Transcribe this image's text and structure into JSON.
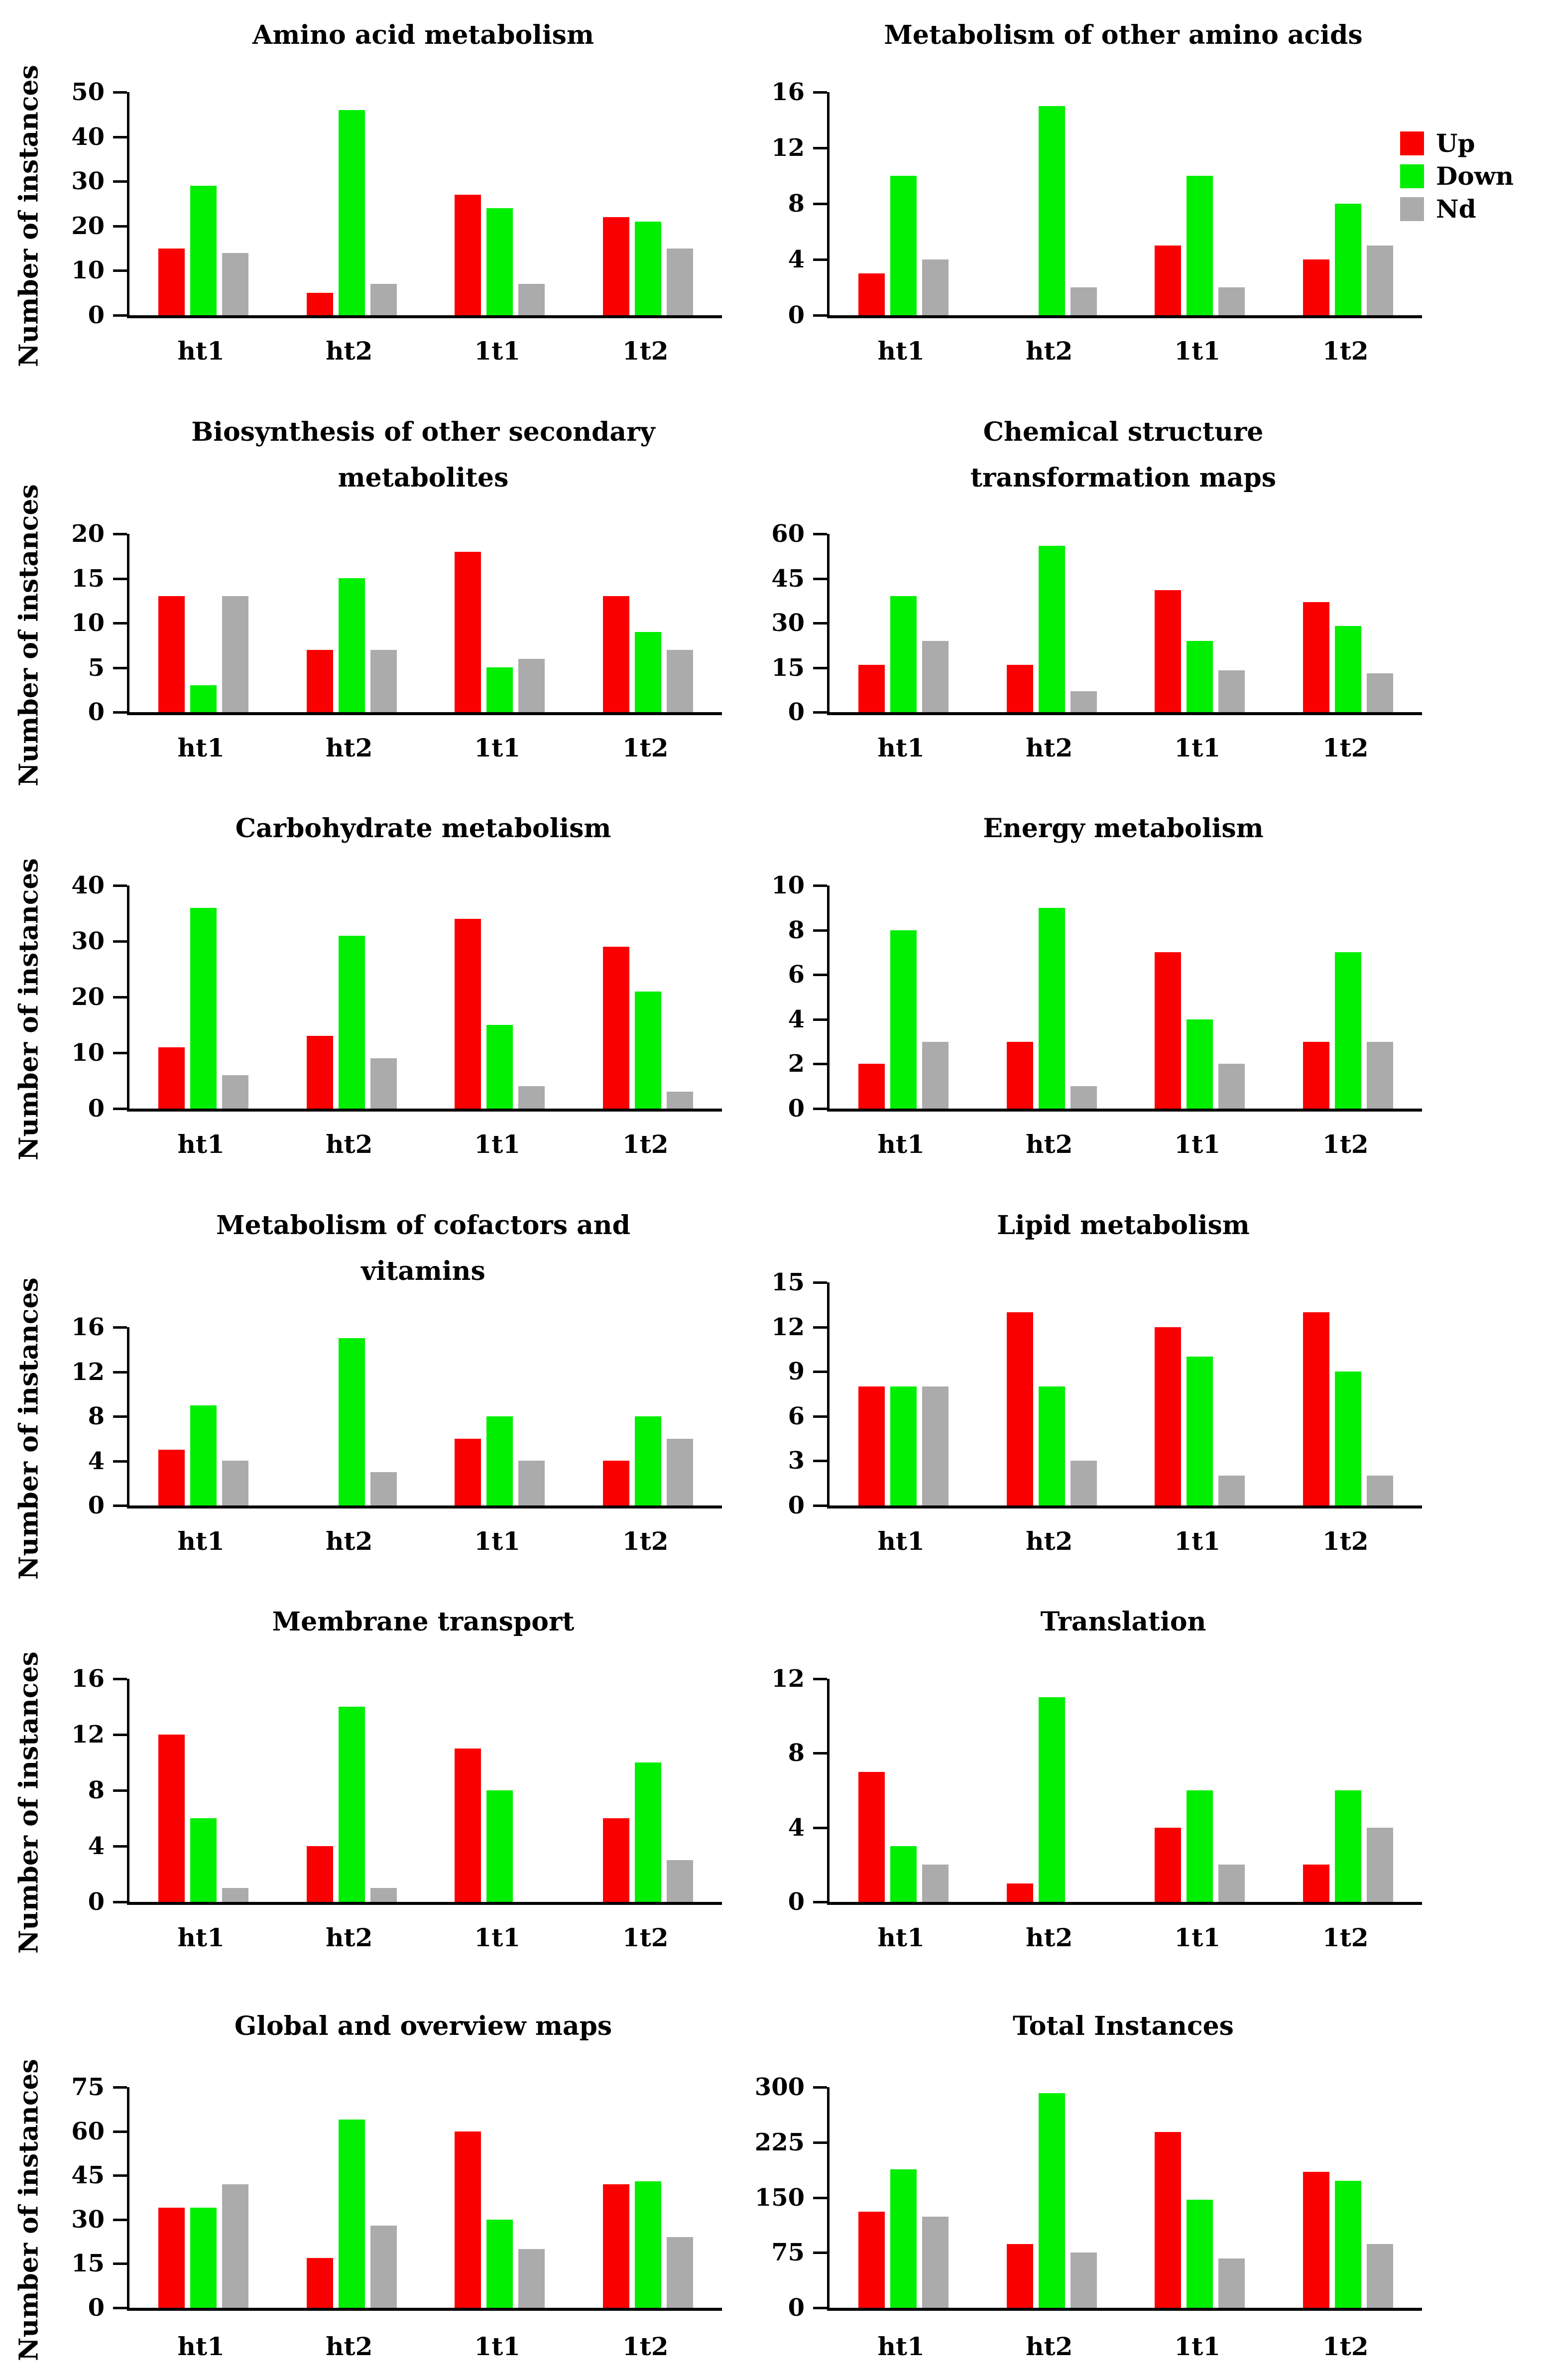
{
  "figure": {
    "ylabel": "Number of instances",
    "categories": [
      "ht1",
      "ht2",
      "1t1",
      "1t2"
    ],
    "colors": {
      "up": "#fb0000",
      "down": "#00ee00",
      "nd": "#ababab"
    },
    "legend": {
      "items": [
        {
          "label": "Up",
          "key": "up"
        },
        {
          "label": "Down",
          "key": "down"
        },
        {
          "label": "Nd",
          "key": "nd"
        }
      ]
    }
  },
  "chart_data": [
    {
      "type": "bar",
      "title": "Amino acid metabolism",
      "title_lines": [
        "Amino acid metabolism"
      ],
      "ylabel": "Number of instances",
      "ylim": [
        0,
        50
      ],
      "ytick_step": 10,
      "categories": [
        "ht1",
        "ht2",
        "1t1",
        "1t2"
      ],
      "series": [
        {
          "name": "Up",
          "values": [
            15,
            5,
            27,
            22
          ]
        },
        {
          "name": "Down",
          "values": [
            29,
            46,
            24,
            21
          ]
        },
        {
          "name": "Nd",
          "values": [
            14,
            7,
            7,
            15
          ]
        }
      ]
    },
    {
      "type": "bar",
      "title": "Metabolism of other amino acids",
      "title_lines": [
        "Metabolism of other amino acids"
      ],
      "ylabel": "",
      "ylim": [
        0,
        16
      ],
      "ytick_step": 4,
      "categories": [
        "ht1",
        "ht2",
        "1t1",
        "1t2"
      ],
      "series": [
        {
          "name": "Up",
          "values": [
            3,
            0,
            5,
            4
          ]
        },
        {
          "name": "Down",
          "values": [
            10,
            15,
            10,
            8
          ]
        },
        {
          "name": "Nd",
          "values": [
            4,
            2,
            2,
            5
          ]
        }
      ]
    },
    {
      "type": "bar",
      "title": "Biosynthesis of other secondary metabolites",
      "title_lines": [
        "Biosynthesis of other secondary",
        "metabolites"
      ],
      "ylabel": "Number of instances",
      "ylim": [
        0,
        20
      ],
      "ytick_step": 5,
      "categories": [
        "ht1",
        "ht2",
        "1t1",
        "1t2"
      ],
      "series": [
        {
          "name": "Up",
          "values": [
            13,
            7,
            18,
            13
          ]
        },
        {
          "name": "Down",
          "values": [
            3,
            15,
            5,
            9
          ]
        },
        {
          "name": "Nd",
          "values": [
            13,
            7,
            6,
            7
          ]
        }
      ]
    },
    {
      "type": "bar",
      "title": "Chemical structure transformation maps",
      "title_lines": [
        "Chemical structure",
        "transformation maps"
      ],
      "ylabel": "",
      "ylim": [
        0,
        60
      ],
      "ytick_step": 15,
      "categories": [
        "ht1",
        "ht2",
        "1t1",
        "1t2"
      ],
      "series": [
        {
          "name": "Up",
          "values": [
            16,
            16,
            41,
            37
          ]
        },
        {
          "name": "Down",
          "values": [
            39,
            56,
            24,
            29
          ]
        },
        {
          "name": "Nd",
          "values": [
            24,
            7,
            14,
            13
          ]
        }
      ]
    },
    {
      "type": "bar",
      "title": "Carbohydrate metabolism",
      "title_lines": [
        "Carbohydrate metabolism"
      ],
      "ylabel": "Number of instances",
      "ylim": [
        0,
        40
      ],
      "ytick_step": 10,
      "categories": [
        "ht1",
        "ht2",
        "1t1",
        "1t2"
      ],
      "series": [
        {
          "name": "Up",
          "values": [
            11,
            13,
            34,
            29
          ]
        },
        {
          "name": "Down",
          "values": [
            36,
            31,
            15,
            21
          ]
        },
        {
          "name": "Nd",
          "values": [
            6,
            9,
            4,
            3
          ]
        }
      ]
    },
    {
      "type": "bar",
      "title": "Energy metabolism",
      "title_lines": [
        "Energy metabolism"
      ],
      "ylabel": "",
      "ylim": [
        0,
        10
      ],
      "ytick_step": 2,
      "categories": [
        "ht1",
        "ht2",
        "1t1",
        "1t2"
      ],
      "series": [
        {
          "name": "Up",
          "values": [
            2,
            3,
            7,
            3
          ]
        },
        {
          "name": "Down",
          "values": [
            8,
            9,
            4,
            7
          ]
        },
        {
          "name": "Nd",
          "values": [
            3,
            1,
            2,
            3
          ]
        }
      ]
    },
    {
      "type": "bar",
      "title": "Metabolism of cofactors and vitamins",
      "title_lines": [
        "Metabolism of cofactors and",
        "vitamins"
      ],
      "ylabel": "Number of instances",
      "ylim": [
        0,
        16
      ],
      "ytick_step": 4,
      "categories": [
        "ht1",
        "ht2",
        "1t1",
        "1t2"
      ],
      "series": [
        {
          "name": "Up",
          "values": [
            5,
            0,
            6,
            4
          ]
        },
        {
          "name": "Down",
          "values": [
            9,
            15,
            8,
            8
          ]
        },
        {
          "name": "Nd",
          "values": [
            4,
            3,
            4,
            6
          ]
        }
      ]
    },
    {
      "type": "bar",
      "title": "Lipid metabolism",
      "title_lines": [
        "Lipid metabolism"
      ],
      "ylabel": "",
      "ylim": [
        0,
        15
      ],
      "ytick_step": 3,
      "categories": [
        "ht1",
        "ht2",
        "1t1",
        "1t2"
      ],
      "series": [
        {
          "name": "Up",
          "values": [
            8,
            13,
            12,
            13
          ]
        },
        {
          "name": "Down",
          "values": [
            8,
            8,
            10,
            9
          ]
        },
        {
          "name": "Nd",
          "values": [
            8,
            3,
            2,
            2
          ]
        }
      ]
    },
    {
      "type": "bar",
      "title": "Membrane transport",
      "title_lines": [
        "Membrane transport"
      ],
      "ylabel": "Number of instances",
      "ylim": [
        0,
        16
      ],
      "ytick_step": 4,
      "categories": [
        "ht1",
        "ht2",
        "1t1",
        "1t2"
      ],
      "series": [
        {
          "name": "Up",
          "values": [
            12,
            4,
            11,
            6
          ]
        },
        {
          "name": "Down",
          "values": [
            6,
            14,
            8,
            10
          ]
        },
        {
          "name": "Nd",
          "values": [
            1,
            1,
            0,
            3
          ]
        }
      ]
    },
    {
      "type": "bar",
      "title": "Translation",
      "title_lines": [
        "Translation"
      ],
      "ylabel": "",
      "ylim": [
        0,
        12
      ],
      "ytick_step": 4,
      "categories": [
        "ht1",
        "ht2",
        "1t1",
        "1t2"
      ],
      "series": [
        {
          "name": "Up",
          "values": [
            7,
            1,
            4,
            2
          ]
        },
        {
          "name": "Down",
          "values": [
            3,
            11,
            6,
            6
          ]
        },
        {
          "name": "Nd",
          "values": [
            2,
            0,
            2,
            4
          ]
        }
      ]
    },
    {
      "type": "bar",
      "title": "Global and overview maps",
      "title_lines": [
        "Global and overview maps"
      ],
      "ylabel": "Number of instances",
      "ylim": [
        0,
        75
      ],
      "ytick_step": 15,
      "categories": [
        "ht1",
        "ht2",
        "1t1",
        "1t2"
      ],
      "series": [
        {
          "name": "Up",
          "values": [
            34,
            17,
            60,
            42
          ]
        },
        {
          "name": "Down",
          "values": [
            34,
            64,
            30,
            43
          ]
        },
        {
          "name": "Nd",
          "values": [
            42,
            28,
            20,
            24
          ]
        }
      ]
    },
    {
      "type": "bar",
      "title": "Total Instances",
      "title_lines": [
        "Total Instances"
      ],
      "ylabel": "",
      "ylim": [
        0,
        300
      ],
      "ytick_step": 75,
      "categories": [
        "ht1",
        "ht2",
        "1t1",
        "1t2"
      ],
      "series": [
        {
          "name": "Up",
          "values": [
            131,
            87,
            239,
            185
          ]
        },
        {
          "name": "Down",
          "values": [
            188,
            292,
            147,
            173
          ]
        },
        {
          "name": "Nd",
          "values": [
            124,
            75,
            67,
            87
          ]
        }
      ]
    }
  ]
}
